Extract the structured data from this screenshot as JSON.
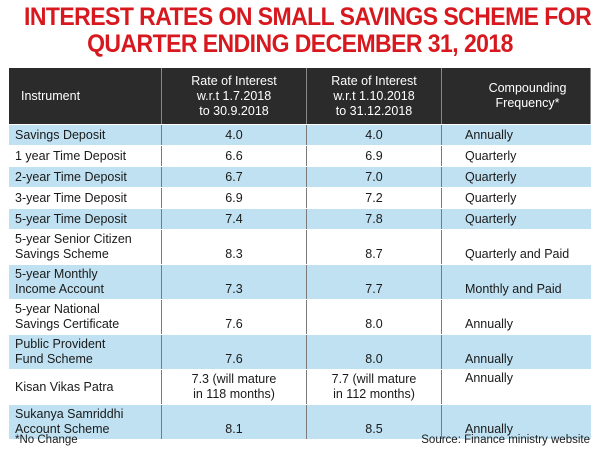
{
  "title_line1": "INTEREST RATES ON SMALL SAVINGS SCHEME FOR",
  "title_line2": "QUARTER ENDING DECEMBER 31, 2018",
  "chart_data": {
    "type": "table",
    "columns": [
      "Instrument",
      "Rate of Interest\nw.r.t 1.7.2018\nto 30.9.2018",
      "Rate of Interest\nw.r.t 1.10.2018\nto 31.12.2018",
      "Compounding\nFrequency*"
    ],
    "rows": [
      [
        "Savings Deposit",
        "4.0",
        "4.0",
        "Annually"
      ],
      [
        "1 year Time Deposit",
        "6.6",
        "6.9",
        "Quarterly"
      ],
      [
        "2-year Time Deposit",
        "6.7",
        "7.0",
        "Quarterly"
      ],
      [
        "3-year Time Deposit",
        "6.9",
        "7.2",
        "Quarterly"
      ],
      [
        "5-year Time Deposit",
        "7.4",
        "7.8",
        "Quarterly"
      ],
      [
        "5-year Senior Citizen\nSavings Scheme",
        "8.3",
        "8.7",
        "Quarterly and Paid"
      ],
      [
        "5-year Monthly\nIncome Account",
        "7.3",
        "7.7",
        "Monthly and Paid"
      ],
      [
        "5-year National\nSavings Certificate",
        "7.6",
        "8.0",
        "Annually"
      ],
      [
        "Public Provident\nFund Scheme",
        "7.6",
        "8.0",
        "Annually"
      ],
      [
        "Kisan Vikas Patra",
        "7.3 (will mature\nin 118 months)",
        "7.7 (will mature\nin 112 months)",
        "Annually"
      ],
      [
        "Sukanya Samriddhi\nAccount Scheme",
        "8.1",
        "8.5",
        "Annually"
      ]
    ]
  },
  "footnote": "*No Change",
  "source": "Source: Finance ministry website",
  "colors": {
    "title": "#d7191f",
    "header_bg": "#2b2b2b",
    "stripe": "#bfe1f2"
  }
}
